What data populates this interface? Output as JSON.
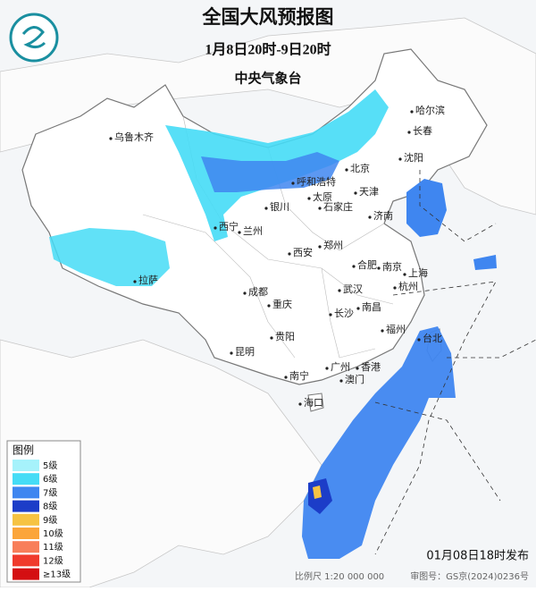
{
  "header": {
    "title": "全国大风预报图",
    "subtitle": "1月8日20时-9日20时",
    "issuer": "中央气象台"
  },
  "legend": {
    "title": "图例",
    "items": [
      {
        "label": "5级",
        "color": "#a6f2fb"
      },
      {
        "label": "6级",
        "color": "#45dcf6"
      },
      {
        "label": "7级",
        "color": "#3f86f0"
      },
      {
        "label": "8级",
        "color": "#1c3dc8"
      },
      {
        "label": "9级",
        "color": "#f6c343"
      },
      {
        "label": "10级",
        "color": "#fba53a"
      },
      {
        "label": "11级",
        "color": "#f87e5a"
      },
      {
        "label": "12级",
        "color": "#f03a2c"
      },
      {
        "label": "≥13级",
        "color": "#d40f12"
      }
    ]
  },
  "cities": [
    "乌鲁木齐",
    "哈尔滨",
    "长春",
    "沈阳",
    "北京",
    "天津",
    "呼和浩特",
    "太原",
    "石家庄",
    "银川",
    "济南",
    "西宁",
    "兰州",
    "郑州",
    "西安",
    "合肥",
    "南京",
    "上海",
    "拉萨",
    "成都",
    "武汉",
    "杭州",
    "重庆",
    "长沙",
    "南昌",
    "福州",
    "台北",
    "贵阳",
    "昆明",
    "广州",
    "香港",
    "澳门",
    "南宁",
    "海口"
  ],
  "footer": {
    "issued": "01月08日18时发布",
    "scale": "比例尺 1:20 000 000",
    "review": "审图号：GS京(2024)0236号"
  }
}
